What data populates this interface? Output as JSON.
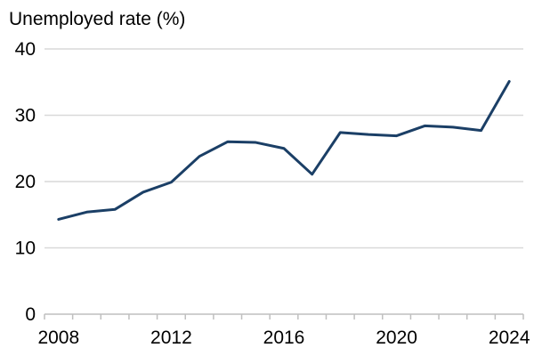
{
  "chart_data": {
    "type": "line",
    "title": "",
    "ylabel": "Unemployed rate (%)",
    "xlabel": "",
    "x": [
      2008,
      2009,
      2010,
      2011,
      2012,
      2013,
      2014,
      2015,
      2016,
      2017,
      2018,
      2019,
      2020,
      2021,
      2022,
      2023,
      2024
    ],
    "series": [
      {
        "values": [
          14.3,
          15.4,
          15.8,
          18.4,
          19.9,
          23.8,
          26.0,
          25.9,
          25.0,
          21.1,
          27.4,
          27.1,
          26.9,
          28.4,
          28.2,
          27.7,
          35.1
        ]
      }
    ],
    "xlim": [
      2008,
      2024
    ],
    "ylim": [
      0,
      40
    ],
    "x_ticks": [
      2008,
      2012,
      2016,
      2020,
      2024
    ],
    "y_ticks": [
      0,
      10,
      20,
      30,
      40
    ],
    "grid": "horizontal",
    "legend": "none",
    "line_color": "#1b3f66",
    "grid_color": "#d9d9d9",
    "axis_color": "#bfbfbf"
  }
}
